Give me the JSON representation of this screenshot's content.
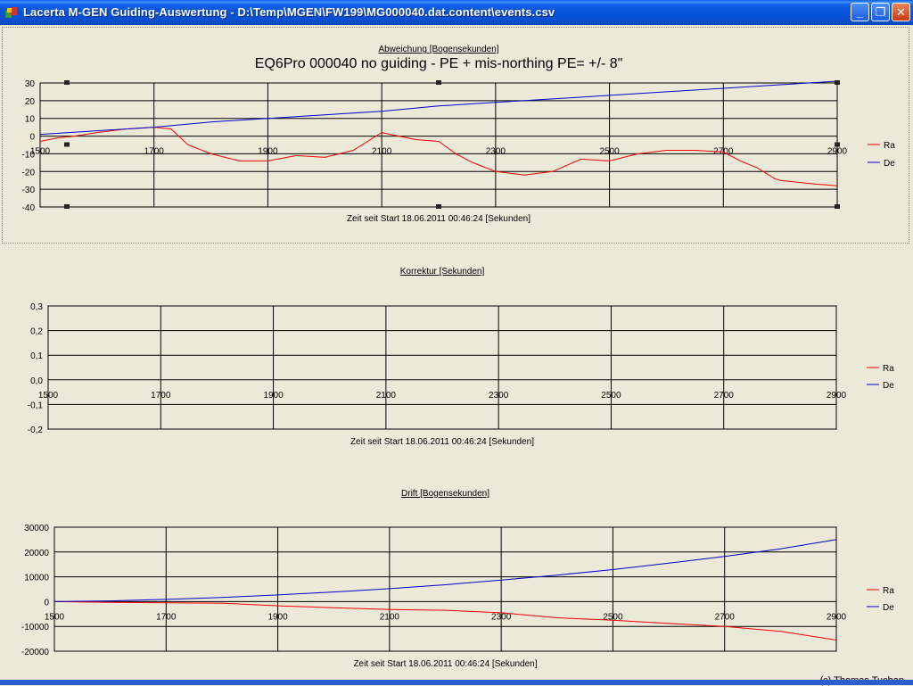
{
  "window": {
    "title": "Lacerta M-GEN Guiding-Auswertung - D:\\Temp\\MGEN\\FW199\\MG000040.dat.content\\events.csv",
    "minimize_glyph": "_",
    "restore_glyph": "❐",
    "close_glyph": "✕",
    "icon": "app-icon"
  },
  "footer": {
    "copyright": "(c) Thomas Tuchan"
  },
  "colors": {
    "ra": "#ff0000",
    "de": "#0000cc",
    "grid": "#000000"
  },
  "chart_data": [
    {
      "id": "abweichung",
      "type": "line",
      "title": "Abweichung [Bogensekunden]",
      "subtitle": "EQ6Pro 000040  no guiding - PE + mis-northing   PE= +/- 8\"",
      "xlabel": "Zeit seit Start 18.06.2011 00:46:24 [Sekunden]",
      "ylabel": "",
      "xlim": [
        1500,
        2900
      ],
      "ylim": [
        -40,
        30
      ],
      "xticks": [
        1500,
        1700,
        1900,
        2100,
        2300,
        2500,
        2700,
        2900
      ],
      "xtick_labels": [
        "1500",
        "1700",
        "1900",
        "2100",
        "2300",
        "2500",
        "2700",
        "2900"
      ],
      "yticks": [
        -40,
        -30,
        -20,
        -10,
        0,
        10,
        20,
        30
      ],
      "ytick_labels": [
        "-40",
        "-30",
        "-20",
        "-10",
        "0",
        "10",
        "20",
        "30"
      ],
      "grid": true,
      "legend": "right",
      "series": [
        {
          "name": "Ra",
          "color": "#ff0000",
          "x": [
            1500,
            1530,
            1560,
            1600,
            1650,
            1700,
            1730,
            1760,
            1800,
            1850,
            1900,
            1950,
            2000,
            2050,
            2100,
            2130,
            2160,
            2200,
            2230,
            2260,
            2300,
            2350,
            2400,
            2450,
            2500,
            2550,
            2600,
            2650,
            2700,
            2730,
            2760,
            2790,
            2800,
            2830,
            2860,
            2900
          ],
          "y": [
            -3,
            -1,
            0,
            2,
            4,
            5,
            4,
            -5,
            -10,
            -14,
            -14,
            -11,
            -12,
            -8,
            2,
            0,
            -2,
            -3,
            -10,
            -15,
            -20,
            -22,
            -20,
            -13,
            -14,
            -10,
            -8,
            -8,
            -9,
            -14,
            -18,
            -24,
            -25,
            -26,
            -27,
            -28
          ]
        },
        {
          "name": "De",
          "color": "#0000cc",
          "x": [
            1500,
            1600,
            1700,
            1800,
            1900,
            2000,
            2100,
            2200,
            2300,
            2400,
            2500,
            2600,
            2700,
            2800,
            2900
          ],
          "y": [
            1,
            3,
            5,
            8,
            10,
            12,
            14,
            17,
            19,
            21,
            23,
            25,
            27,
            29,
            31
          ]
        }
      ]
    },
    {
      "id": "korrektur",
      "type": "line",
      "title": "Korrektur [Sekunden]",
      "xlabel": "Zeit seit Start 18.06.2011 00:46:24 [Sekunden]",
      "ylabel": "",
      "xlim": [
        1500,
        2900
      ],
      "ylim": [
        -0.2,
        0.3
      ],
      "xticks": [
        1500,
        1700,
        1900,
        2100,
        2300,
        2500,
        2700,
        2900
      ],
      "xtick_labels": [
        "1500",
        "1700",
        "1900",
        "2100",
        "2300",
        "2500",
        "2700",
        "2900"
      ],
      "yticks": [
        -0.2,
        -0.1,
        0,
        0.1,
        0.2,
        0.3
      ],
      "ytick_labels": [
        "-0,2",
        "-0,1",
        "0,0",
        "0,1",
        "0,2",
        "0,3"
      ],
      "grid": true,
      "legend": "right",
      "series": [
        {
          "name": "Ra",
          "color": "#ff0000",
          "x": [],
          "y": []
        },
        {
          "name": "De",
          "color": "#0000cc",
          "x": [],
          "y": []
        }
      ]
    },
    {
      "id": "drift",
      "type": "line",
      "title": "Drift [Bogensekunden]",
      "xlabel": "Zeit seit Start 18.06.2011 00:46:24 [Sekunden]",
      "ylabel": "",
      "xlim": [
        1500,
        2900
      ],
      "ylim": [
        -20000,
        30000
      ],
      "xticks": [
        1500,
        1700,
        1900,
        2100,
        2300,
        2500,
        2700,
        2900
      ],
      "xtick_labels": [
        "1500",
        "1700",
        "1900",
        "2100",
        "2300",
        "2500",
        "2700",
        "2900"
      ],
      "yticks": [
        -20000,
        -10000,
        0,
        10000,
        20000,
        30000
      ],
      "ytick_labels": [
        "-20000",
        "-10000",
        "0",
        "10000",
        "20000",
        "30000"
      ],
      "grid": true,
      "legend": "right",
      "series": [
        {
          "name": "Ra",
          "color": "#ff0000",
          "x": [
            1500,
            1600,
            1700,
            1800,
            1900,
            2000,
            2100,
            2200,
            2300,
            2400,
            2500,
            2600,
            2700,
            2800,
            2900
          ],
          "y": [
            0,
            -300,
            -500,
            -600,
            -1700,
            -2500,
            -3200,
            -3500,
            -4500,
            -6500,
            -7500,
            -8800,
            -10000,
            -12000,
            -15500
          ]
        },
        {
          "name": "De",
          "color": "#0000cc",
          "x": [
            1500,
            1600,
            1700,
            1800,
            1900,
            2000,
            2100,
            2200,
            2300,
            2400,
            2500,
            2600,
            2700,
            2800,
            2900
          ],
          "y": [
            0,
            300,
            900,
            1700,
            2700,
            3900,
            5200,
            6800,
            8700,
            10700,
            12900,
            15500,
            18200,
            21300,
            25000
          ]
        }
      ]
    }
  ]
}
